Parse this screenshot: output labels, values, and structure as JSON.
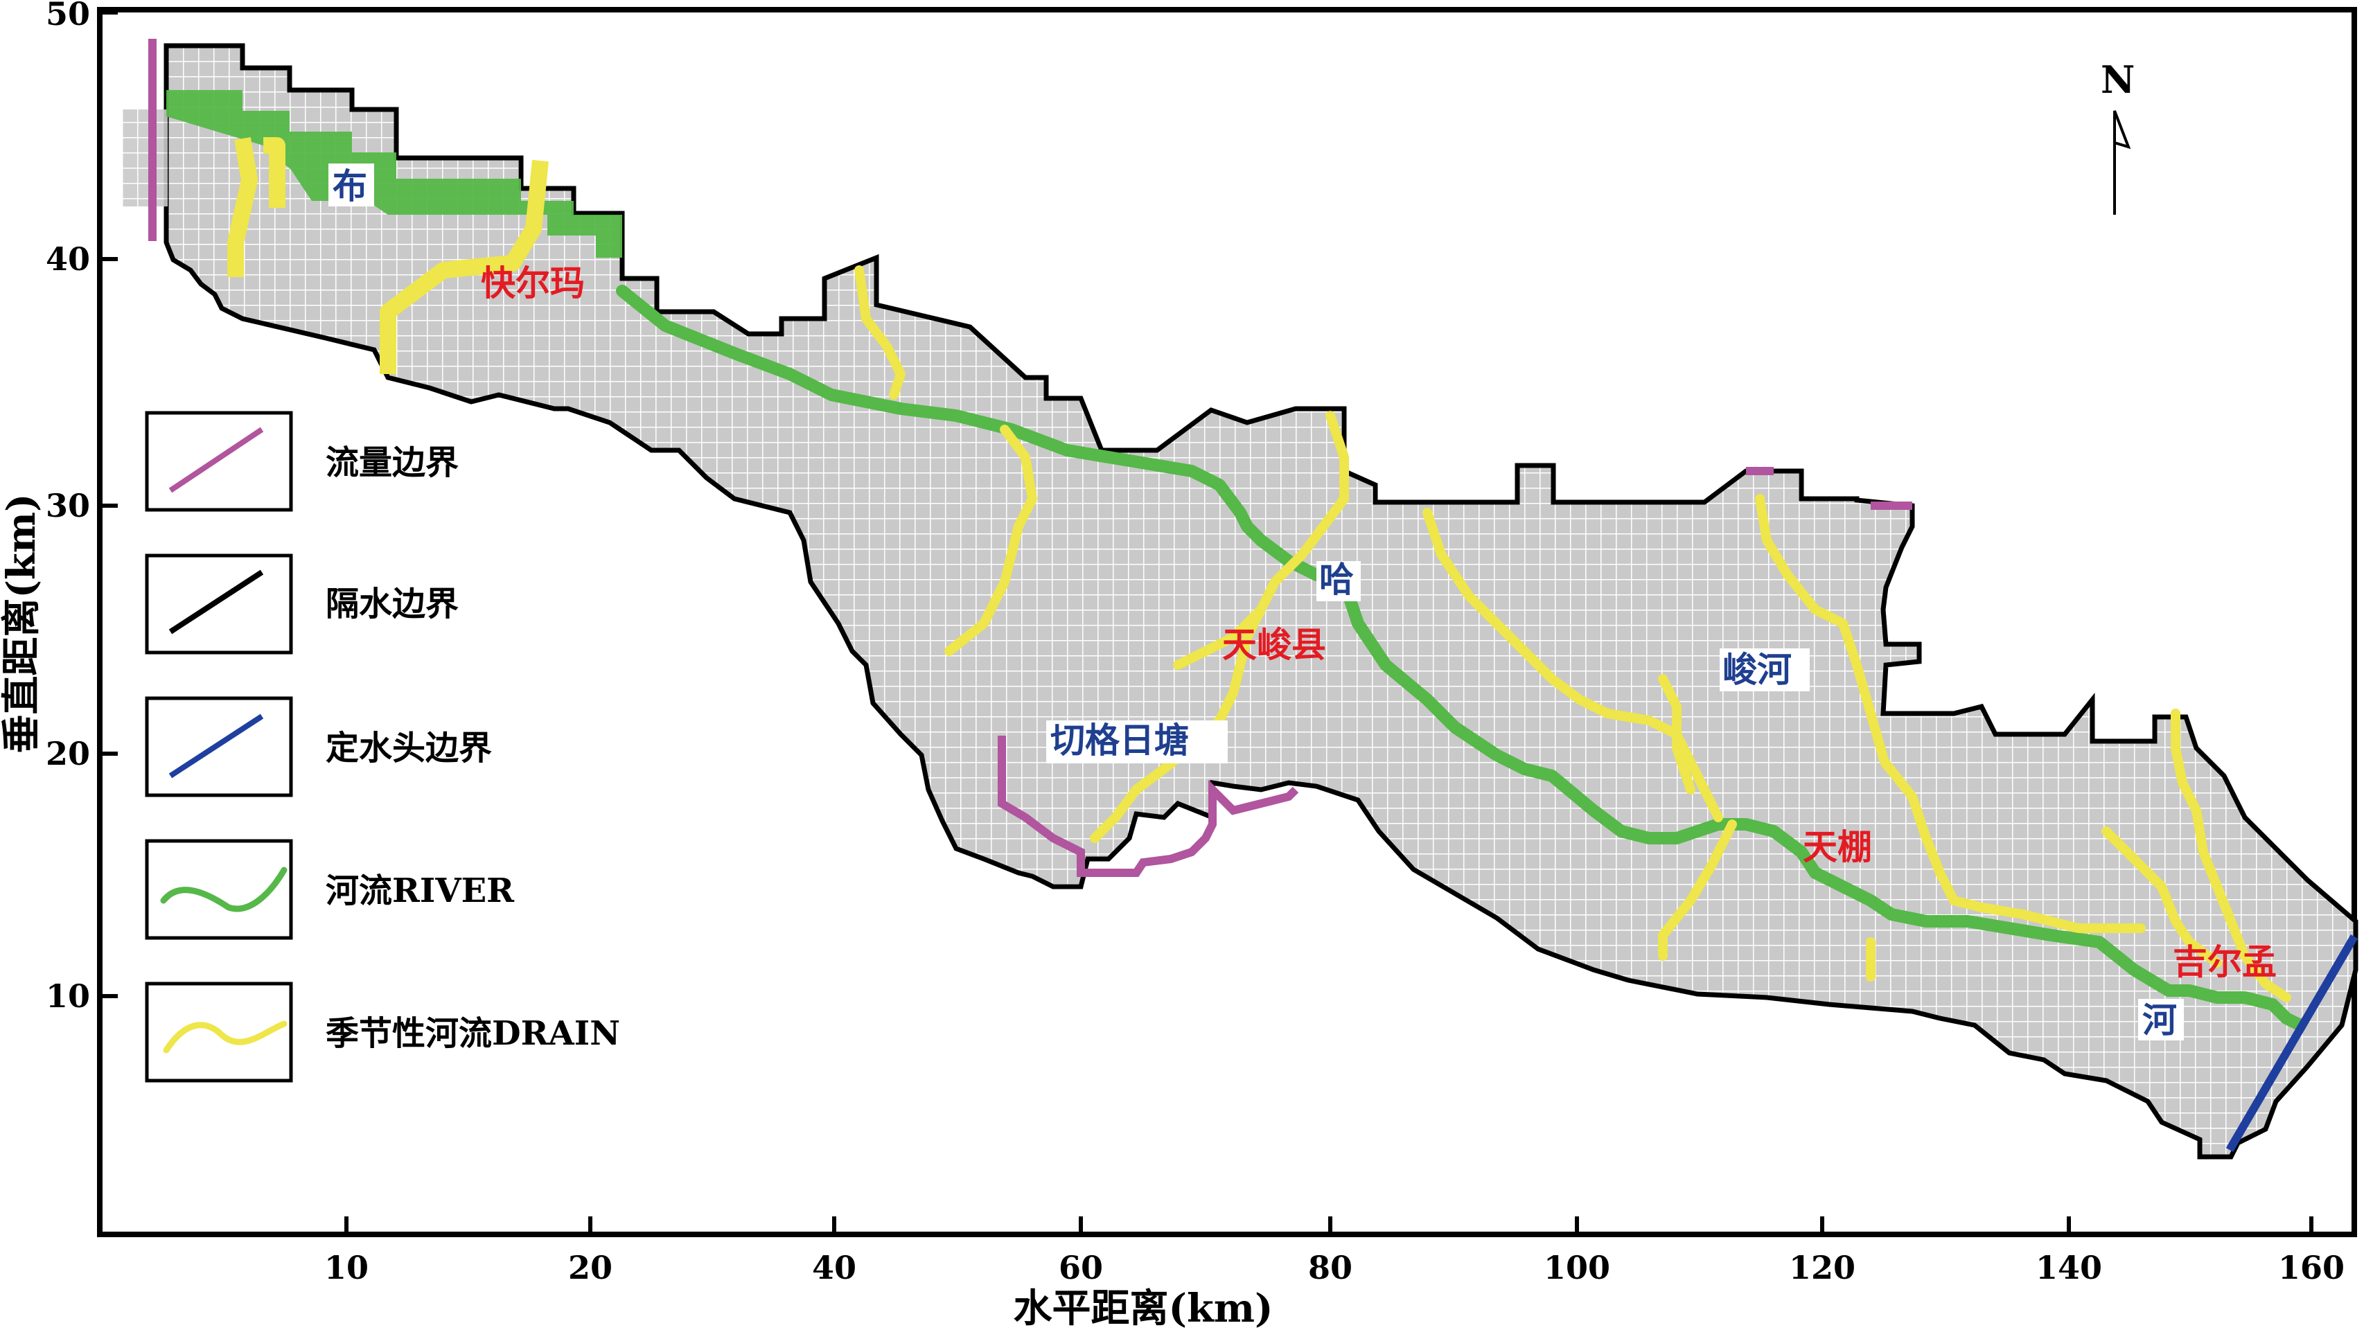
{
  "axes": {
    "x_title": "水平距离(km)",
    "y_title": "垂直距离(km)",
    "x_ticks": [
      "10",
      "20",
      "40",
      "60",
      "80",
      "100",
      "120",
      "140",
      "160"
    ],
    "y_ticks": [
      "10",
      "20",
      "30",
      "40",
      "50"
    ]
  },
  "north": {
    "label": "N"
  },
  "legend": [
    {
      "label": "流量边界",
      "icon": "purple-line",
      "color": "#b0559e"
    },
    {
      "label": "隔水边界",
      "icon": "black-line",
      "color": "#000000"
    },
    {
      "label": "定水头边界",
      "icon": "blue-line",
      "color": "#1f3f9f"
    },
    {
      "label": "河流RIVER",
      "icon": "green-curve",
      "color": "#55b848"
    },
    {
      "label": "季节性河流DRAIN",
      "icon": "yellow-curve",
      "color": "#eee64a"
    }
  ],
  "places": {
    "bu": "布",
    "kuaierma": "快尔玛",
    "ha": "哈",
    "tianjun_county": "天峻县",
    "qiege_ritang": "切格日塘",
    "jun_he": "峻河",
    "tianpeng": "天棚",
    "jierma": "吉尔孟",
    "he": "河"
  },
  "colors": {
    "grid_fill": "#c9c9c9",
    "grid_line": "#ffffff",
    "river": "#55b848",
    "drain": "#eee64a",
    "flux_boundary": "#b0559e",
    "impervious_boundary": "#000000",
    "constant_head_boundary": "#1f3f9f",
    "red_label": "#e31b23",
    "blue_label": "#1f3f8f"
  }
}
